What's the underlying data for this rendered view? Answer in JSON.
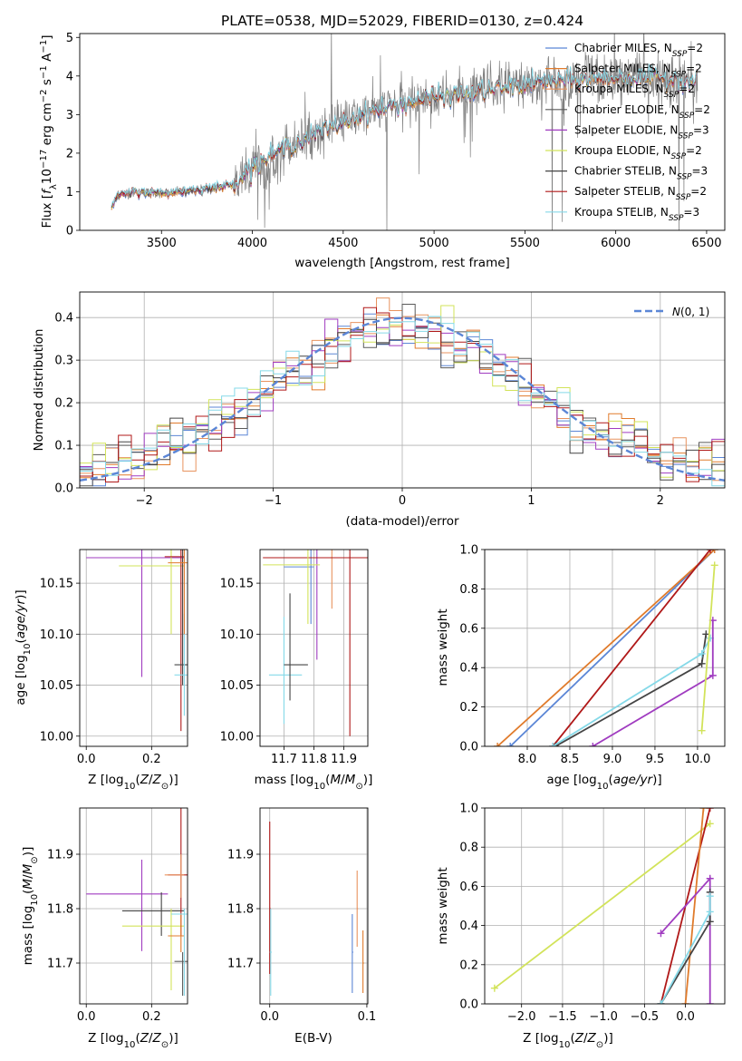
{
  "title": "PLATE=0538, MJD=52029, FIBERID=0130, z=0.424",
  "colors": {
    "Chabrier MILES": "#5b86d6",
    "Salpeter MILES": "#e07b2c",
    "Kroupa MILES": "#e8935f",
    "Chabrier ELODIE": "#5a5a5a",
    "Salpeter ELODIE": "#a03cc0",
    "Kroupa ELODIE": "#d2e35a",
    "Chabrier STELIB": "#444444",
    "Salpeter STELIB": "#b01818",
    "Kroupa STELIB": "#85d9e8",
    "data": "#808080",
    "gauss": "#5b86d6"
  },
  "chart_data": [
    {
      "id": "spectrum",
      "type": "line",
      "xlabel": "wavelength [Angstrom, rest frame]",
      "ylabel": "Flux [f_λ 10^-17 erg cm^-2 s^-1 A^-1]",
      "xlim": [
        3050,
        6600
      ],
      "ylim": [
        0,
        5.1
      ],
      "xticks": [
        3500,
        4000,
        4500,
        5000,
        5500,
        6000,
        6500
      ],
      "yticks": [
        0,
        1,
        2,
        3,
        4,
        5
      ],
      "grid": false,
      "legend_position": "top-right",
      "legend": [
        "Chabrier MILES, N_SSP=2",
        "Salpeter MILES, N_SSP=2",
        "Kroupa MILES, N_SSP=2",
        "Chabrier ELODIE, N_SSP=2",
        "Salpeter ELODIE, N_SSP=3",
        "Kroupa ELODIE, N_SSP=2",
        "Chabrier STELIB, N_SSP=3",
        "Salpeter STELIB, N_SSP=2",
        "Kroupa STELIB, N_SSP=3"
      ],
      "model_continuum": [
        [
          3225,
          0.55
        ],
        [
          3250,
          0.85
        ],
        [
          3300,
          0.95
        ],
        [
          3400,
          1.0
        ],
        [
          3500,
          0.95
        ],
        [
          3600,
          1.0
        ],
        [
          3700,
          1.05
        ],
        [
          3800,
          1.1
        ],
        [
          3900,
          1.2
        ],
        [
          4000,
          1.65
        ],
        [
          4200,
          2.2
        ],
        [
          4400,
          2.6
        ],
        [
          4600,
          3.0
        ],
        [
          4800,
          3.25
        ],
        [
          5000,
          3.45
        ],
        [
          5200,
          3.55
        ],
        [
          5400,
          3.7
        ],
        [
          5600,
          3.85
        ],
        [
          5800,
          3.9
        ],
        [
          6000,
          3.95
        ],
        [
          6200,
          3.95
        ],
        [
          6450,
          3.85
        ]
      ]
    },
    {
      "id": "residuals",
      "type": "step",
      "xlabel": "(data-model)/error",
      "ylabel": "Normed distribution",
      "xlim": [
        -2.5,
        2.5
      ],
      "ylim": [
        0,
        0.46
      ],
      "xticks": [
        -2,
        -1,
        0,
        1,
        2
      ],
      "yticks": [
        0.0,
        0.1,
        0.2,
        0.3,
        0.4
      ],
      "grid": true,
      "legend_position": "top-right",
      "legend": [
        "N(0,1)"
      ],
      "gaussian": {
        "mean": 0,
        "sigma": 1
      }
    },
    {
      "id": "age-vs-Z",
      "type": "errorbar",
      "xlabel": "Z [log10(Z/Z⊙)]",
      "ylabel": "age  [log10(age/yr)]",
      "xlim": [
        -0.02,
        0.31
      ],
      "ylim": [
        9.99,
        10.183
      ],
      "xticks": [
        0.0,
        0.2
      ],
      "yticks": [
        10.0,
        10.05,
        10.1,
        10.15
      ],
      "grid": true
    },
    {
      "id": "age-vs-mass",
      "type": "errorbar",
      "xlabel": "mass [log10(M/M⊙)]",
      "ylabel": "",
      "xlim": [
        11.62,
        11.98
      ],
      "ylim": [
        9.99,
        10.183
      ],
      "xticks": [
        11.7,
        11.8,
        11.9
      ],
      "yticks": [
        10.0,
        10.05,
        10.1,
        10.15
      ],
      "grid": true
    },
    {
      "id": "weight-vs-age",
      "type": "line",
      "xlabel": "age  [log10(age/yr)]",
      "ylabel": "mass weight",
      "xlim": [
        7.5,
        10.32
      ],
      "ylim": [
        0,
        1
      ],
      "xticks": [
        8.0,
        8.5,
        9.0,
        9.5,
        10.0
      ],
      "yticks": [
        0.0,
        0.2,
        0.4,
        0.6,
        0.8,
        1.0
      ],
      "grid": true
    },
    {
      "id": "mass-vs-Z",
      "type": "errorbar",
      "xlabel": "Z [log10(Z/Z⊙)]",
      "ylabel": "mass [log10(M/M⊙)]",
      "xlim": [
        -0.02,
        0.31
      ],
      "ylim": [
        11.625,
        11.985
      ],
      "xticks": [
        0.0,
        0.2
      ],
      "yticks": [
        11.7,
        11.8,
        11.9
      ],
      "grid": true
    },
    {
      "id": "mass-vs-ebv",
      "type": "errorbar",
      "xlabel": "E(B-V)",
      "ylabel": "",
      "xlim": [
        -0.01,
        0.101
      ],
      "ylim": [
        11.625,
        11.985
      ],
      "xticks": [
        0.0,
        0.1
      ],
      "yticks": [
        11.7,
        11.8,
        11.9
      ],
      "grid": true
    },
    {
      "id": "weight-vs-Z",
      "type": "line",
      "xlabel": "Z [log10(Z/Z⊙)]",
      "ylabel": "mass weight",
      "xlim": [
        -2.45,
        0.48
      ],
      "ylim": [
        0,
        1
      ],
      "xticks": [
        -2.0,
        -1.5,
        -1.0,
        -0.5,
        0.0
      ],
      "yticks": [
        0.0,
        0.2,
        0.4,
        0.6,
        0.8,
        1.0
      ],
      "grid": true
    }
  ]
}
